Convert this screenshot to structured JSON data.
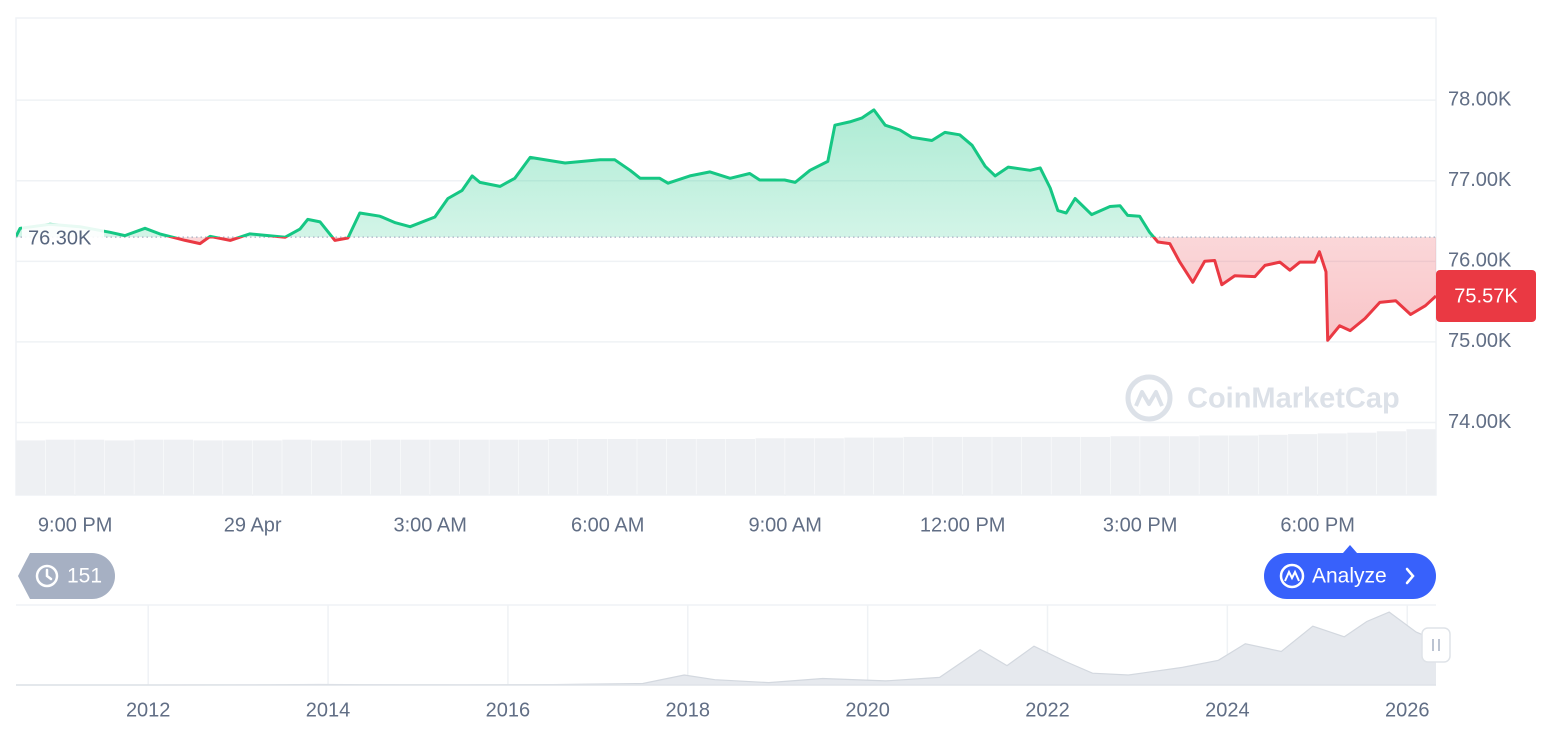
{
  "chart_data": [
    {
      "type": "line",
      "x": [
        20.0,
        20.07,
        20.57,
        21.08,
        21.59,
        21.84,
        22.18,
        22.43,
        22.86,
        23.11,
        23.28,
        23.62,
        23.95,
        24.55,
        24.8,
        24.93,
        25.14,
        25.39,
        25.61,
        25.81,
        26.15,
        26.41,
        26.66,
        27.08,
        27.3,
        27.54,
        27.71,
        27.84,
        28.18,
        28.43,
        28.69,
        29.11,
        29.28,
        29.87,
        30.12,
        30.38,
        30.55,
        30.88,
        31.02,
        31.39,
        31.73,
        32.07,
        32.4,
        32.57,
        32.99,
        33.17,
        33.42,
        33.72,
        33.84,
        34.09,
        34.3,
        34.5,
        34.69,
        34.94,
        35.14,
        35.48,
        35.7,
        35.95,
        36.16,
        36.38,
        36.55,
        36.77,
        37.14,
        37.31,
        37.48,
        37.61,
        37.75,
        37.9,
        38.18,
        38.49,
        38.66,
        38.79,
        38.99,
        39.16,
        39.3,
        39.5,
        39.67,
        39.89,
        40.09,
        40.26,
        40.38,
        40.6,
        40.94,
        41.11,
        41.36,
        41.53,
        41.7,
        41.95,
        42.03,
        42.14,
        42.17,
        42.37,
        42.55,
        42.8,
        43.05,
        43.32,
        43.57,
        43.82,
        44.0
      ],
      "values": [
        76310,
        76410,
        76460,
        76430,
        76360,
        76320,
        76410,
        76340,
        76260,
        76220,
        76310,
        76260,
        76340,
        76300,
        76400,
        76520,
        76490,
        76260,
        76290,
        76600,
        76560,
        76480,
        76430,
        76550,
        76780,
        76880,
        77060,
        76980,
        76930,
        77030,
        77290,
        77240,
        77220,
        77260,
        77260,
        77130,
        77030,
        77030,
        76970,
        77060,
        77110,
        77030,
        77090,
        77010,
        77010,
        76980,
        77130,
        77240,
        77690,
        77730,
        77780,
        77880,
        77690,
        77630,
        77540,
        77500,
        77600,
        77570,
        77440,
        77180,
        77060,
        77170,
        77130,
        77160,
        76910,
        76630,
        76600,
        76780,
        76580,
        76680,
        76690,
        76570,
        76560,
        76360,
        76240,
        76220,
        75990,
        75740,
        76000,
        76010,
        75710,
        75820,
        75810,
        75950,
        75990,
        75890,
        75990,
        75990,
        76120,
        75870,
        75020,
        75200,
        75140,
        75290,
        75490,
        75510,
        75340,
        75450,
        75570
      ],
      "xlim": [
        20,
        44
      ],
      "ylim": [
        73100,
        79020
      ],
      "xticks": [
        {
          "value": 21,
          "label": "9:00 PM"
        },
        {
          "value": 24,
          "label": "29 Apr"
        },
        {
          "value": 27,
          "label": "3:00 AM"
        },
        {
          "value": 30,
          "label": "6:00 AM"
        },
        {
          "value": 33,
          "label": "9:00 AM"
        },
        {
          "value": 36,
          "label": "12:00 PM"
        },
        {
          "value": 39,
          "label": "3:00 PM"
        },
        {
          "value": 42,
          "label": "6:00 PM"
        }
      ],
      "yticks": [
        {
          "value": 74000,
          "label": "74.00K"
        },
        {
          "value": 75000,
          "label": "75.00K"
        },
        {
          "value": 76000,
          "label": "76.00K"
        },
        {
          "value": 77000,
          "label": "77.00K"
        },
        {
          "value": 78000,
          "label": "78.00K"
        }
      ],
      "grid": true,
      "baseline": {
        "value": 76300,
        "label": "76.30K"
      },
      "current": {
        "value": 75570,
        "label": "75.57K"
      },
      "up_color": "#16c784",
      "down_color": "#ea3943",
      "watermark": "CoinMarketCap",
      "volume": {
        "values": [
          78,
          79,
          79,
          78,
          79,
          79,
          78,
          78,
          78,
          79,
          78,
          78,
          79,
          79,
          79,
          79,
          79,
          79,
          80,
          80,
          80,
          80,
          80,
          80,
          80,
          81,
          81,
          81,
          82,
          82,
          83,
          83,
          83,
          83,
          83,
          83,
          83,
          84,
          84,
          84,
          85,
          85,
          86,
          87,
          88,
          89,
          91,
          94
        ],
        "ylim": [
          0,
          100
        ],
        "color": "#eef0f3"
      }
    },
    {
      "type": "area",
      "x": [
        2010.53,
        2012,
        2013,
        2013.9,
        2014.5,
        2015.5,
        2016.5,
        2017.5,
        2017.96,
        2018.3,
        2018.9,
        2019.5,
        2020.2,
        2020.8,
        2021.25,
        2021.55,
        2021.85,
        2022.2,
        2022.5,
        2022.9,
        2023.5,
        2023.9,
        2024.2,
        2024.6,
        2024.95,
        2025.3,
        2025.55,
        2025.8,
        2026.1,
        2026.32
      ],
      "values": [
        0,
        5,
        100,
        800,
        500,
        250,
        600,
        2500,
        17000,
        9000,
        4000,
        11000,
        7000,
        13000,
        60000,
        33000,
        66000,
        40000,
        20000,
        17000,
        30000,
        42000,
        70000,
        57000,
        100000,
        82000,
        108000,
        124000,
        90000,
        76000
      ],
      "xlim": [
        2010.53,
        2026.32
      ],
      "ylim": [
        0,
        136000
      ],
      "xticks": [
        2012,
        2014,
        2016,
        2018,
        2020,
        2022,
        2024,
        2026
      ],
      "color": "#e6e9ee"
    }
  ],
  "ui": {
    "history_count": 151,
    "analyze_button": "Analyze"
  }
}
